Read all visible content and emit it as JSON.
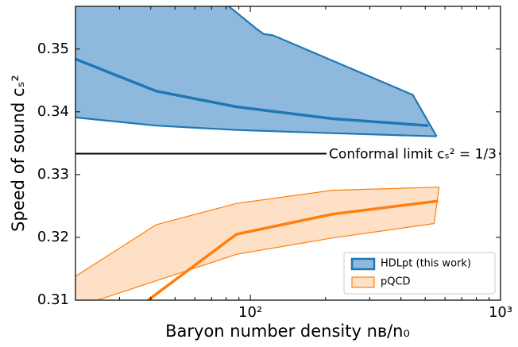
{
  "chart_data": {
    "type": "band",
    "xlabel": "Baryon number density nʙ/n₀",
    "ylabel": "Speed of sound cₛ²",
    "xlim": [
      20,
      1000
    ],
    "ylim": [
      0.31,
      0.3568
    ],
    "xscale": "log",
    "xticks": [
      {
        "value": 100,
        "label": "10²"
      },
      {
        "value": 1000,
        "label": "10³"
      }
    ],
    "yticks": [
      0.31,
      0.32,
      0.33,
      0.34,
      0.35
    ],
    "hline": {
      "value": 0.33333,
      "label": "Conformal limit cₛ² = 1/3",
      "color": "#000000"
    },
    "legend": "lower right",
    "series": [
      {
        "name": "HDLpt (this work)",
        "color": "#1f77b4",
        "fill": "#8fb9dc",
        "upper": {
          "x": [
            82,
            106,
            113,
            123,
            446,
            555
          ],
          "values": [
            0.3568,
            0.3532,
            0.3524,
            0.3522,
            0.3427,
            0.3361
          ]
        },
        "lower": {
          "x": [
            20,
            42,
            88,
            213,
            555
          ],
          "values": [
            0.3391,
            0.3378,
            0.3371,
            0.3366,
            0.3361
          ]
        },
        "center": {
          "x": [
            20,
            42,
            88,
            213,
            515
          ],
          "values": [
            0.3484,
            0.3433,
            0.3408,
            0.3389,
            0.3378
          ]
        }
      },
      {
        "name": "pQCD",
        "color": "#ff7f0e",
        "fill": "#fde0c5",
        "upper": {
          "x": [
            20,
            42,
            88,
            213,
            568
          ],
          "values": [
            0.3138,
            0.322,
            0.3254,
            0.3275,
            0.328
          ]
        },
        "lower": {
          "x": [
            24.5,
            88,
            213,
            543
          ],
          "values": [
            0.31,
            0.3173,
            0.3199,
            0.3222
          ]
        },
        "center": {
          "x": [
            39,
            88,
            213,
            563
          ],
          "values": [
            0.31,
            0.3205,
            0.3237,
            0.3258
          ]
        }
      }
    ]
  }
}
